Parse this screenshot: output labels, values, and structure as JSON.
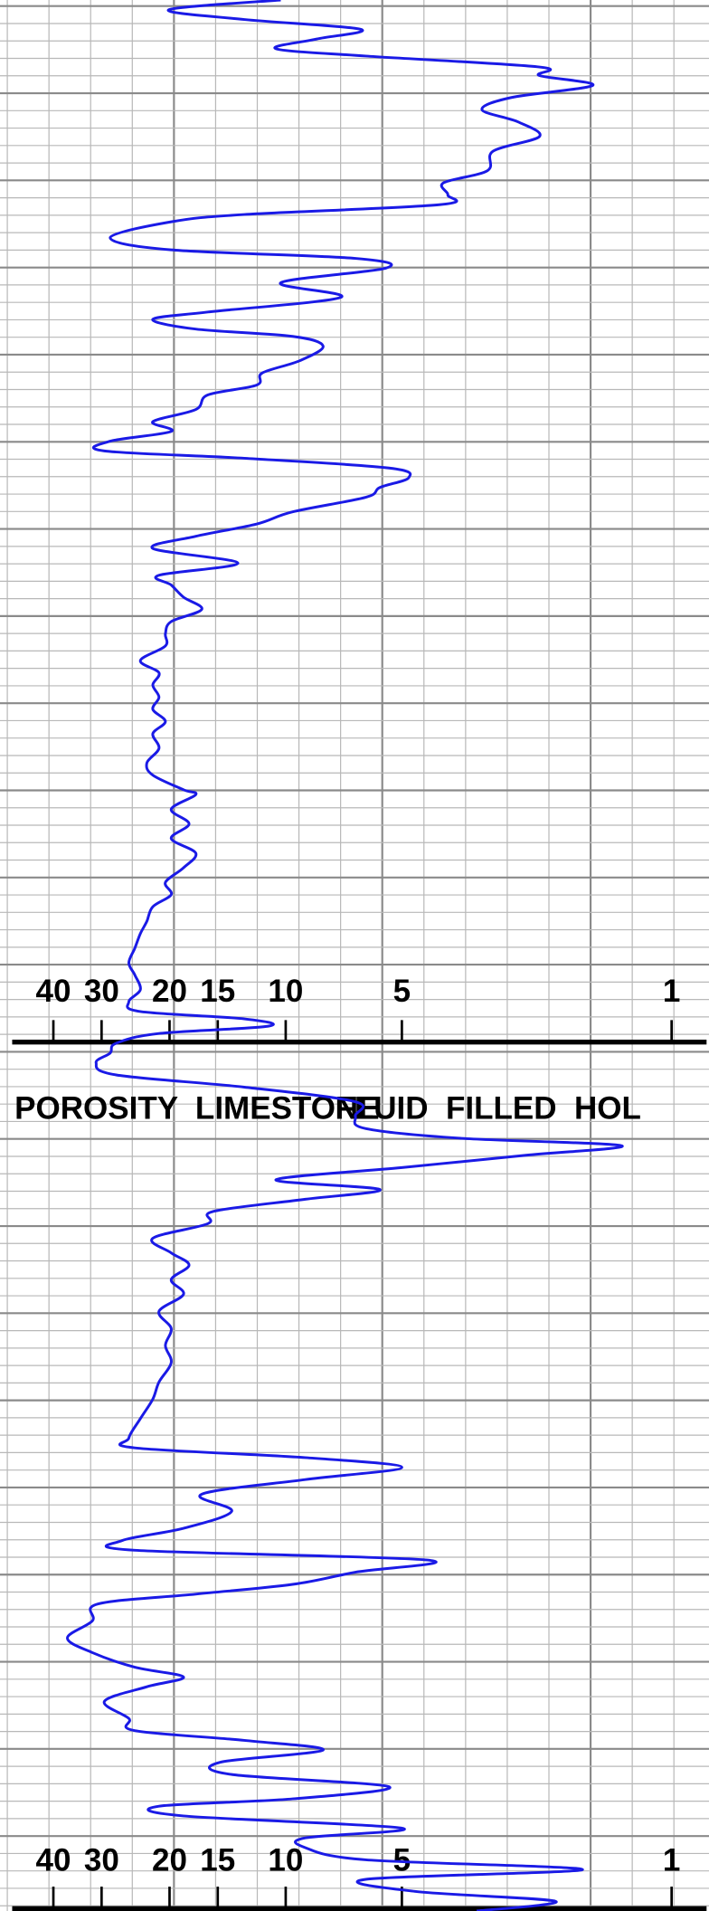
{
  "chart_data": {
    "type": "line",
    "header_left": "POROSITY  LIMESTONE",
    "header_right": "FLUID  FILLED  HOL",
    "log_scale": true,
    "grid": true,
    "color": "#1a1ae6",
    "xlim": [
      55,
      0.8
    ],
    "xticks": [
      40,
      30,
      20,
      15,
      10,
      5,
      1
    ],
    "depth_lim": [
      0,
      1568
    ],
    "depth": [
      0,
      8,
      16,
      24,
      32,
      40,
      46,
      55,
      62,
      70,
      80,
      90,
      100,
      112,
      124,
      140,
      150,
      160,
      168,
      176,
      182,
      195,
      205,
      212,
      220,
      232,
      244,
      256,
      262,
      270,
      276,
      284,
      296,
      306,
      316,
      324,
      336,
      346,
      354,
      362,
      370,
      376,
      384,
      392,
      400,
      408,
      420,
      430,
      440,
      450,
      462,
      472,
      480,
      490,
      500,
      510,
      520,
      530,
      542,
      552,
      562,
      572,
      582,
      592,
      602,
      614,
      626,
      636,
      648,
      652,
      664,
      676,
      688,
      700,
      712,
      724,
      734,
      744,
      756,
      766,
      778,
      790,
      800,
      812,
      822,
      830,
      836,
      842,
      848,
      856,
      864,
      872,
      882,
      892,
      904,
      916,
      926,
      934,
      940,
      948,
      958,
      968,
      976,
      984,
      994,
      1004,
      1016,
      1028,
      1038,
      1050,
      1062,
      1076,
      1090,
      1104,
      1118,
      1134,
      1148,
      1164,
      1180,
      1188,
      1196,
      1204,
      1214,
      1226,
      1240,
      1254,
      1264,
      1272,
      1280,
      1290,
      1300,
      1308,
      1316,
      1330,
      1344,
      1356,
      1368,
      1376,
      1384,
      1396,
      1410,
      1420,
      1428,
      1436,
      1446,
      1456,
      1466,
      1476,
      1482,
      1490,
      1500,
      1508,
      1516,
      1526,
      1534,
      1542,
      1552,
      1560,
      1568
    ],
    "values": [
      10.3,
      20.1,
      12.8,
      6.4,
      8.3,
      10.6,
      6.2,
      2.2,
      2.2,
      1.6,
      2.6,
      3.1,
      2.5,
      2.2,
      2.9,
      3.0,
      3.9,
      3.8,
      4.0,
      12.8,
      19.8,
      28.5,
      19.8,
      6.6,
      5.5,
      10.3,
      7.2,
      15.9,
      22.1,
      17.1,
      9.6,
      8.0,
      9.2,
      11.5,
      11.9,
      15.9,
      17.1,
      22.1,
      19.8,
      28.5,
      29.5,
      12.8,
      5.4,
      4.8,
      5.7,
      6.2,
      9.6,
      11.9,
      17.1,
      22.1,
      13.3,
      21.3,
      19.8,
      18.4,
      16.5,
      19.8,
      20.5,
      20.5,
      23.8,
      21.3,
      22.1,
      21.3,
      22.1,
      20.5,
      22.1,
      21.3,
      22.9,
      22.1,
      18.4,
      17.1,
      19.8,
      17.8,
      19.8,
      17.1,
      18.4,
      20.5,
      19.8,
      22.1,
      22.9,
      23.8,
      24.6,
      25.5,
      24.6,
      23.8,
      25.5,
      23.8,
      12.8,
      11.1,
      21.3,
      27.5,
      28.5,
      31.0,
      27.5,
      12.8,
      6.6,
      6.6,
      6.2,
      3.5,
      1.35,
      2.4,
      5.0,
      10.6,
      5.7,
      8.9,
      15.4,
      15.9,
      22.1,
      19.8,
      17.8,
      19.8,
      18.4,
      21.3,
      19.8,
      20.5,
      19.8,
      21.3,
      22.1,
      23.8,
      25.5,
      24.6,
      8.9,
      5.0,
      8.9,
      16.5,
      13.8,
      18.4,
      26.5,
      24.6,
      4.3,
      6.6,
      9.6,
      17.1,
      30.6,
      31.7,
      36.8,
      31.7,
      24.6,
      18.4,
      22.9,
      29.5,
      25.5,
      24.6,
      12.8,
      8.0,
      14.8,
      13.8,
      5.4,
      9.6,
      21.3,
      18.4,
      5.0,
      8.9,
      8.9,
      6.2,
      1.7,
      6.2,
      4.6,
      2.0,
      3.2
    ]
  }
}
